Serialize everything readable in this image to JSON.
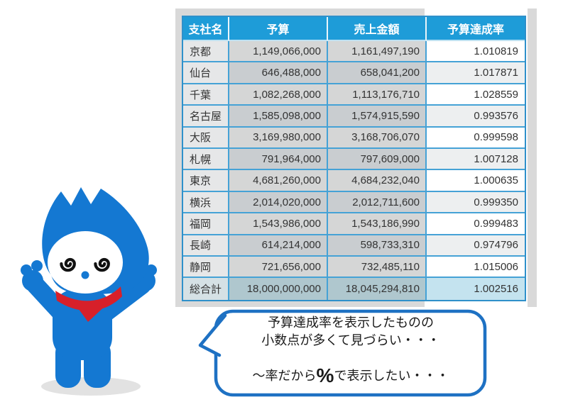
{
  "colors": {
    "header_blue": "#1e9cd8",
    "grid_border_blue": "#45a2d6",
    "panel_gray": "#d9d9d9",
    "total_row_teal": "#afc7ce",
    "total_rate_cyan": "#c4e3ef",
    "bubble_border_blue": "#1e71c3",
    "mascot_blue": "#1478d2",
    "scarf_red": "#d7202a"
  },
  "table": {
    "headers": [
      "支社名",
      "予算",
      "売上金額",
      "予算達成率"
    ],
    "rows": [
      {
        "name": "京都",
        "budget": "1,149,066,000",
        "sales": "1,161,497,190",
        "rate": "1.010819"
      },
      {
        "name": "仙台",
        "budget": "646,488,000",
        "sales": "658,041,200",
        "rate": "1.017871"
      },
      {
        "name": "千葉",
        "budget": "1,082,268,000",
        "sales": "1,113,176,710",
        "rate": "1.028559"
      },
      {
        "name": "名古屋",
        "budget": "1,585,098,000",
        "sales": "1,574,915,590",
        "rate": "0.993576"
      },
      {
        "name": "大阪",
        "budget": "3,169,980,000",
        "sales": "3,168,706,070",
        "rate": "0.999598"
      },
      {
        "name": "札幌",
        "budget": "791,964,000",
        "sales": "797,609,000",
        "rate": "1.007128"
      },
      {
        "name": "東京",
        "budget": "4,681,260,000",
        "sales": "4,684,232,040",
        "rate": "1.000635"
      },
      {
        "name": "横浜",
        "budget": "2,014,020,000",
        "sales": "2,012,711,600",
        "rate": "0.999350"
      },
      {
        "name": "福岡",
        "budget": "1,543,986,000",
        "sales": "1,543,186,990",
        "rate": "0.999483"
      },
      {
        "name": "長崎",
        "budget": "614,214,000",
        "sales": "598,733,310",
        "rate": "0.974796"
      },
      {
        "name": "静岡",
        "budget": "721,656,000",
        "sales": "732,485,110",
        "rate": "1.015006"
      },
      {
        "name": "総合計",
        "budget": "18,000,000,000",
        "sales": "18,045,294,810",
        "rate": "1.002516"
      }
    ]
  },
  "speech_bubble": {
    "line1": "予算達成率を表示したものの",
    "line2": "小数点が多くて見づらい・・・",
    "line3_prefix": "～率だから",
    "line3_percent": "%",
    "line3_suffix": "で表示したい・・・"
  },
  "mascot": {
    "icon": "dizzy-blue-mascot-with-red-scarf"
  }
}
